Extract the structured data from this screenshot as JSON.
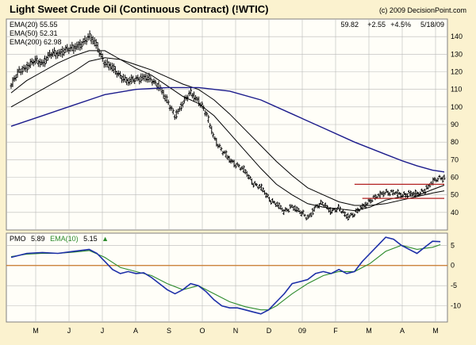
{
  "title": "Light Sweet Crude Oil (Continuous Contract) (!WTIC)",
  "copyright": "(c) 2009 DecisionPoint.com",
  "quote": {
    "last": "59.82",
    "change": "+2.55",
    "pct": "+4.5%",
    "date": "5/18/09"
  },
  "legend": [
    {
      "label": "EMA(20) 55.55",
      "color": "#000000"
    },
    {
      "label": "EMA(50) 52.31",
      "color": "#000000"
    },
    {
      "label": "EMA(200) 62.98",
      "color": "#1c1c8c"
    }
  ],
  "pmo_legend": {
    "pmo_label": "PMO",
    "pmo_value": "5.89",
    "ema_label": "EMA(10)",
    "ema_value": "5.15",
    "arrow": "▲"
  },
  "colors": {
    "background": "#fbf2cf",
    "price": "#000000",
    "ema20": "#000000",
    "ema50": "#000000",
    "ema200": "#1c1c8c",
    "pmo": "#1d2fa8",
    "pmo_ema": "#2b8a2b",
    "zero_line": "#c8782a",
    "channel": "#b22222",
    "grid": "#b9b9b9"
  },
  "x_axis_labels": [
    "M",
    "J",
    "J",
    "A",
    "S",
    "O",
    "N",
    "D",
    "09",
    "F",
    "M",
    "A",
    "M"
  ],
  "chart_data": [
    {
      "type": "ohlc",
      "title": "Light Sweet Crude Oil (Continuous Contract) (!WTIC)",
      "ylim": [
        30,
        150
      ],
      "yticks": [
        40,
        50,
        60,
        70,
        80,
        90,
        100,
        110,
        120,
        130,
        140
      ],
      "x_range_weeks": [
        0,
        55.5
      ],
      "price_anchors": [
        [
          0,
          112
        ],
        [
          1,
          120
        ],
        [
          2,
          123
        ],
        [
          3,
          126
        ],
        [
          4,
          125
        ],
        [
          5,
          130
        ],
        [
          6,
          130
        ],
        [
          7,
          133
        ],
        [
          8,
          133
        ],
        [
          9,
          136
        ],
        [
          10,
          140
        ],
        [
          11,
          135
        ],
        [
          12,
          125
        ],
        [
          13,
          122
        ],
        [
          14,
          118
        ],
        [
          15,
          114
        ],
        [
          16,
          116
        ],
        [
          17,
          117
        ],
        [
          18,
          115
        ],
        [
          19,
          112
        ],
        [
          20,
          103
        ],
        [
          21,
          95
        ],
        [
          22,
          102
        ],
        [
          23,
          108
        ],
        [
          24,
          104
        ],
        [
          25,
          96
        ],
        [
          26,
          83
        ],
        [
          27,
          75
        ],
        [
          28,
          70
        ],
        [
          29,
          67
        ],
        [
          30,
          63
        ],
        [
          31,
          57
        ],
        [
          32,
          54
        ],
        [
          33,
          48
        ],
        [
          34,
          45
        ],
        [
          35,
          40
        ],
        [
          36,
          44
        ],
        [
          37,
          40
        ],
        [
          38,
          37
        ],
        [
          39,
          43
        ],
        [
          40,
          45
        ],
        [
          41,
          41
        ],
        [
          42,
          42
        ],
        [
          43,
          38
        ],
        [
          44,
          39
        ],
        [
          45,
          43
        ],
        [
          46,
          47
        ],
        [
          47,
          49
        ],
        [
          48,
          52
        ],
        [
          49,
          51
        ],
        [
          50,
          50
        ],
        [
          51,
          51
        ],
        [
          52,
          50
        ],
        [
          53,
          53
        ],
        [
          54,
          57
        ],
        [
          55,
          59.8
        ]
      ],
      "series": [
        {
          "name": "EMA(20)",
          "key": "ema20",
          "points": [
            [
              0,
              108
            ],
            [
              2,
              115
            ],
            [
              4,
              120
            ],
            [
              6,
              125
            ],
            [
              8,
              129
            ],
            [
              10,
              132
            ],
            [
              12,
              132
            ],
            [
              14,
              127
            ],
            [
              16,
              122
            ],
            [
              18,
              118
            ],
            [
              20,
              112
            ],
            [
              22,
              106
            ],
            [
              24,
              102
            ],
            [
              26,
              95
            ],
            [
              28,
              85
            ],
            [
              30,
              75
            ],
            [
              32,
              65
            ],
            [
              34,
              56
            ],
            [
              36,
              50
            ],
            [
              38,
              45
            ],
            [
              40,
              43
            ],
            [
              42,
              42
            ],
            [
              44,
              41
            ],
            [
              46,
              43
            ],
            [
              48,
              47
            ],
            [
              50,
              49
            ],
            [
              52,
              49.5
            ],
            [
              54,
              53
            ],
            [
              55.5,
              55.5
            ]
          ]
        },
        {
          "name": "EMA(50)",
          "key": "ema50",
          "points": [
            [
              0,
              100
            ],
            [
              4,
              110
            ],
            [
              8,
              120
            ],
            [
              10,
              126
            ],
            [
              12,
              128
            ],
            [
              14,
              127
            ],
            [
              16,
              124
            ],
            [
              18,
              121
            ],
            [
              20,
              117
            ],
            [
              22,
              113
            ],
            [
              24,
              110
            ],
            [
              26,
              104
            ],
            [
              28,
              96
            ],
            [
              30,
              87
            ],
            [
              32,
              78
            ],
            [
              34,
              69
            ],
            [
              36,
              61
            ],
            [
              38,
              54
            ],
            [
              40,
              50
            ],
            [
              42,
              46
            ],
            [
              44,
              44
            ],
            [
              46,
              44
            ],
            [
              48,
              45
            ],
            [
              50,
              47
            ],
            [
              52,
              49
            ],
            [
              54,
              51
            ],
            [
              55.5,
              52.3
            ]
          ]
        },
        {
          "name": "EMA(200)",
          "key": "ema200",
          "points": [
            [
              0,
              89
            ],
            [
              4,
              95
            ],
            [
              8,
              101
            ],
            [
              12,
              107
            ],
            [
              16,
              110
            ],
            [
              20,
              111
            ],
            [
              24,
              111
            ],
            [
              28,
              109
            ],
            [
              32,
              104
            ],
            [
              36,
              96
            ],
            [
              40,
              88
            ],
            [
              44,
              80
            ],
            [
              48,
              73
            ],
            [
              50,
              69.5
            ],
            [
              52,
              66.5
            ],
            [
              54,
              64
            ],
            [
              55.5,
              63
            ]
          ]
        }
      ],
      "channel_lines": [
        {
          "x": [
            44,
            55.5
          ],
          "y": [
            56,
            56
          ]
        },
        {
          "x": [
            45,
            55.5
          ],
          "y": [
            48,
            48
          ]
        }
      ]
    },
    {
      "type": "line",
      "title": "PMO",
      "ylim": [
        -14,
        8
      ],
      "yticks": [
        -10,
        -5,
        0,
        5
      ],
      "zero_line": 0,
      "series": [
        {
          "name": "PMO",
          "key": "pmo",
          "points": [
            [
              0,
              2
            ],
            [
              2,
              3
            ],
            [
              4,
              3.2
            ],
            [
              6,
              3
            ],
            [
              8,
              3.5
            ],
            [
              10,
              4
            ],
            [
              11,
              3
            ],
            [
              12,
              1
            ],
            [
              13,
              -1
            ],
            [
              14,
              -2
            ],
            [
              15,
              -1.5
            ],
            [
              16,
              -2
            ],
            [
              17,
              -1.8
            ],
            [
              18,
              -3
            ],
            [
              19,
              -4.5
            ],
            [
              20,
              -6
            ],
            [
              21,
              -7
            ],
            [
              22,
              -6
            ],
            [
              23,
              -4.5
            ],
            [
              24,
              -5
            ],
            [
              25,
              -6.5
            ],
            [
              26,
              -8.5
            ],
            [
              27,
              -10
            ],
            [
              28,
              -10.5
            ],
            [
              29,
              -10.5
            ],
            [
              30,
              -11
            ],
            [
              31,
              -11.5
            ],
            [
              32,
              -12
            ],
            [
              33,
              -11
            ],
            [
              34,
              -9
            ],
            [
              35,
              -7
            ],
            [
              36,
              -4.5
            ],
            [
              37,
              -4
            ],
            [
              38,
              -3.5
            ],
            [
              39,
              -2
            ],
            [
              40,
              -1.5
            ],
            [
              41,
              -2
            ],
            [
              42,
              -1
            ],
            [
              43,
              -2
            ],
            [
              44,
              -1.5
            ],
            [
              45,
              1
            ],
            [
              46,
              3
            ],
            [
              47,
              5
            ],
            [
              48,
              7
            ],
            [
              49,
              6.5
            ],
            [
              50,
              5
            ],
            [
              51,
              4
            ],
            [
              52,
              3
            ],
            [
              53,
              4.5
            ],
            [
              54,
              6
            ],
            [
              55,
              5.9
            ]
          ]
        },
        {
          "name": "EMA(10)",
          "key": "pmo_ema",
          "points": [
            [
              0,
              2.2
            ],
            [
              2,
              2.8
            ],
            [
              4,
              3
            ],
            [
              6,
              3
            ],
            [
              8,
              3.3
            ],
            [
              10,
              3.7
            ],
            [
              12,
              2
            ],
            [
              14,
              -0.5
            ],
            [
              16,
              -1.5
            ],
            [
              18,
              -2.5
            ],
            [
              20,
              -4.5
            ],
            [
              22,
              -6
            ],
            [
              24,
              -5
            ],
            [
              26,
              -7
            ],
            [
              28,
              -9
            ],
            [
              30,
              -10.2
            ],
            [
              32,
              -11
            ],
            [
              33,
              -11
            ],
            [
              34,
              -10
            ],
            [
              36,
              -7
            ],
            [
              38,
              -4.5
            ],
            [
              40,
              -2.5
            ],
            [
              42,
              -1.5
            ],
            [
              44,
              -1.5
            ],
            [
              46,
              0.5
            ],
            [
              48,
              3.5
            ],
            [
              50,
              5
            ],
            [
              52,
              4
            ],
            [
              54,
              4.5
            ],
            [
              55,
              5.15
            ]
          ]
        }
      ]
    }
  ]
}
